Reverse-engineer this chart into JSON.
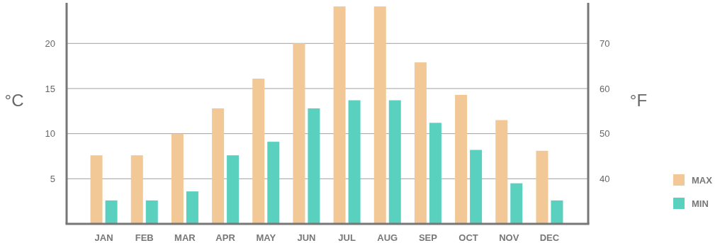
{
  "chart_data": {
    "type": "bar",
    "categories": [
      "JAN",
      "FEB",
      "MAR",
      "APR",
      "MAY",
      "JUN",
      "JUL",
      "AUG",
      "SEP",
      "OCT",
      "NOV",
      "DEC"
    ],
    "series": [
      {
        "name": "MAX",
        "color": "#f2c897",
        "values": [
          7.6,
          7.6,
          10,
          12.8,
          16.1,
          20,
          24.1,
          24.1,
          17.9,
          14.3,
          11.5,
          8.1
        ]
      },
      {
        "name": "MIN",
        "color": "#5ad0be",
        "values": [
          2.6,
          2.6,
          3.6,
          7.6,
          9.1,
          12.8,
          13.7,
          13.7,
          11.2,
          8.2,
          4.5,
          2.6
        ]
      }
    ],
    "ylabel": "°C",
    "y2label": "°F",
    "ylim": [
      0,
      24.5
    ],
    "yticks": [
      5,
      10,
      15,
      20
    ],
    "y2lim": [
      30,
      79
    ],
    "y2ticks": [
      40,
      50,
      60,
      70
    ],
    "grid": "y",
    "legend": "right"
  }
}
